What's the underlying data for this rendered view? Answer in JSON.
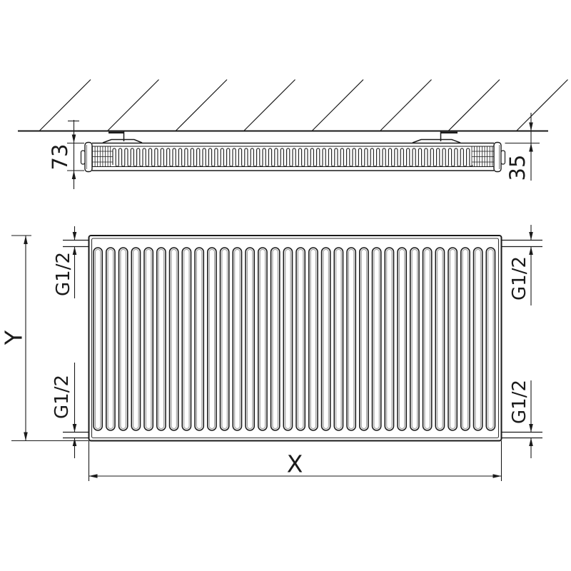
{
  "top_view": {
    "depth_dimension": "73",
    "wall_distance_dimension": "35"
  },
  "front_view": {
    "height_dimension": "Y",
    "width_dimension": "X",
    "connections": {
      "top_left": "G1/2",
      "top_right": "G1/2",
      "bottom_left": "G1/2",
      "bottom_right": "G1/2"
    }
  },
  "colors": {
    "line": "#1a1a1a",
    "background": "#ffffff",
    "fin_shade": "#e9e9e9"
  }
}
